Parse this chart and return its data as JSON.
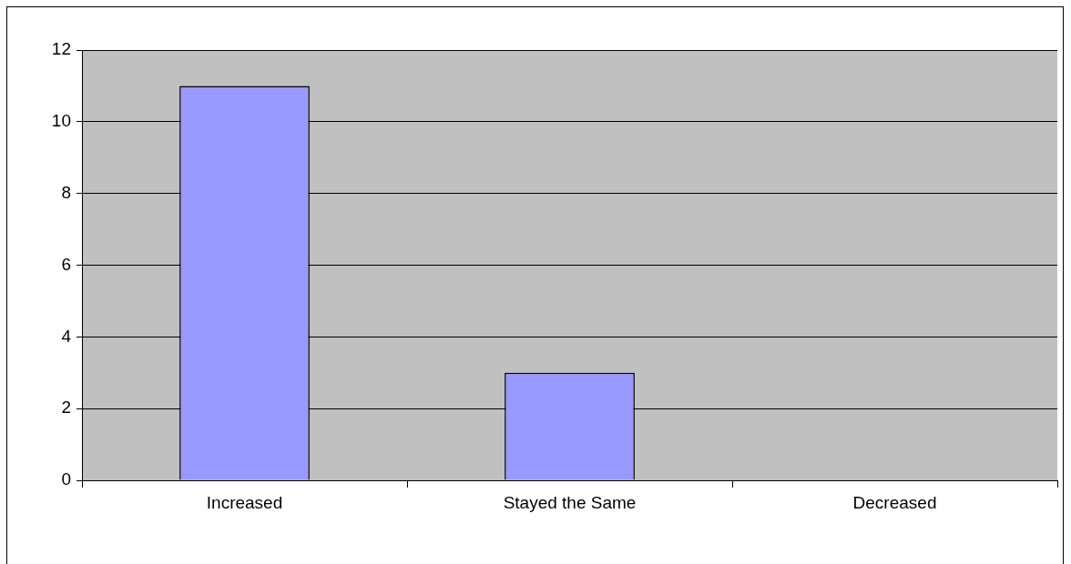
{
  "chart_data": {
    "type": "bar",
    "categories": [
      "Increased",
      "Stayed the Same",
      "Decreased"
    ],
    "values": [
      11,
      3,
      0
    ],
    "color": "#9999ff",
    "ylim": [
      0,
      12
    ],
    "yticks": [
      0,
      2,
      4,
      6,
      8,
      10,
      12
    ],
    "grid": "y",
    "legend": false
  }
}
